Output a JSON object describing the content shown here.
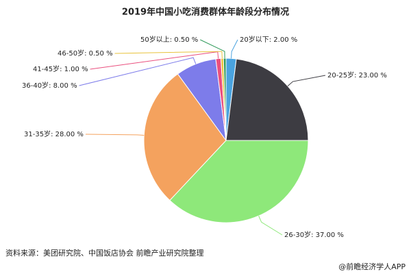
{
  "chart_data": {
    "type": "pie",
    "title": "2019年中国小吃消费群体年龄段分布情况",
    "categories": [
      "20岁以下",
      "20-25岁",
      "26-30岁",
      "31-35岁",
      "36-40岁",
      "41-45岁",
      "46-50岁",
      "50岁以上"
    ],
    "values": [
      2,
      23,
      37,
      28,
      8,
      1,
      0.5,
      0.5
    ],
    "value_labels": [
      "2.00 %",
      "23.00 %",
      "37.00 %",
      "28.00 %",
      "8.00 %",
      "1.00 %",
      "0.50 %",
      "0.50 %"
    ],
    "label_separator": ": ",
    "colors": [
      "#4aa3df",
      "#3d3c42",
      "#8ee87a",
      "#f4a25e",
      "#7d7cea",
      "#ea4f7e",
      "#e8c23a",
      "#2f9a5a"
    ]
  },
  "source": "资料来源：美团研究院、中国饭店协会 前瞻产业研究院整理",
  "footer": "@前瞻经济学人APP"
}
